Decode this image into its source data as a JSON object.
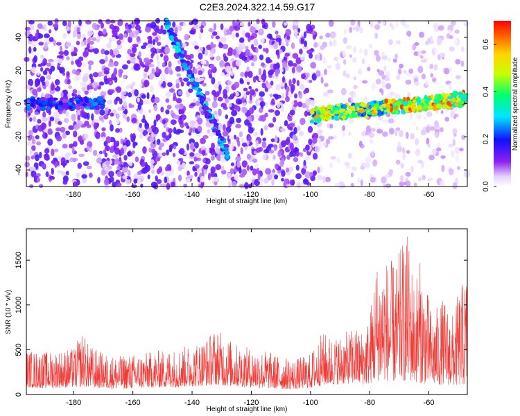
{
  "title": "C2E3.2024.322.14.59.G17",
  "chart_data": [
    {
      "type": "heatmap",
      "xlabel": "Height of straight line (km)",
      "ylabel": "Frequency (Hz)",
      "xlim": [
        -196,
        -47
      ],
      "ylim": [
        -50,
        50
      ],
      "xticks": [
        "-180",
        "-160",
        "-140",
        "-120",
        "-100",
        "-80",
        "-60"
      ],
      "xtick_values": [
        -180,
        -160,
        -140,
        -120,
        -100,
        -80,
        -60
      ],
      "yticks": [
        "-40",
        "-20",
        "0",
        "20",
        "40"
      ],
      "ytick_values": [
        -40,
        -20,
        0,
        20,
        40
      ],
      "colorbar": {
        "label": "Normalized spectral amplitude",
        "range": [
          0.0,
          0.7
        ],
        "ticks": [
          "0.0",
          "0.2",
          "0.4",
          "0.6"
        ],
        "tick_values": [
          0.0,
          0.2,
          0.4,
          0.6
        ]
      },
      "features": [
        {
          "name": "carrier band low-height",
          "x": [
            -196,
            -170
          ],
          "freq": 0,
          "amplitude": 0.2
        },
        {
          "name": "doppler streak",
          "x": [
            -149,
            -128
          ],
          "freq": [
            50,
            -30
          ],
          "amplitude": 0.25
        },
        {
          "name": "carrier band high-height",
          "x": [
            -100,
            -47
          ],
          "freq": [
            -7,
            3
          ],
          "amplitude": 0.45
        }
      ]
    },
    {
      "type": "line",
      "xlabel": "Height of straight line (km)",
      "ylabel": "SNR (10 * v/v)",
      "xlim": [
        -196,
        -47
      ],
      "ylim": [
        0,
        1850
      ],
      "xticks": [
        "-180",
        "-160",
        "-140",
        "-120",
        "-100",
        "-80",
        "-60"
      ],
      "xtick_values": [
        -180,
        -160,
        -140,
        -120,
        -100,
        -80,
        -60
      ],
      "yticks": [
        "0",
        "500",
        "1000",
        "1500"
      ],
      "ytick_values": [
        0,
        500,
        1000,
        1500
      ],
      "color": "#ef3a36",
      "envelope": {
        "x": [
          -196,
          -190,
          -180,
          -177,
          -175,
          -170,
          -165,
          -160,
          -150,
          -145,
          -140,
          -135,
          -132,
          -130,
          -125,
          -120,
          -115,
          -110,
          -105,
          -100,
          -96,
          -92,
          -88,
          -85,
          -82,
          -80,
          -78,
          -75,
          -73,
          -71,
          -69,
          -67,
          -65,
          -63,
          -61,
          -59,
          -57,
          -55,
          -52,
          -50,
          -47
        ],
        "max": [
          500,
          480,
          520,
          720,
          560,
          460,
          430,
          450,
          500,
          520,
          560,
          640,
          750,
          690,
          560,
          520,
          500,
          420,
          400,
          460,
          700,
          640,
          700,
          750,
          720,
          900,
          1500,
          1550,
          1500,
          1480,
          1700,
          1800,
          1300,
          1500,
          1250,
          900,
          1000,
          1080,
          900,
          1150,
          1380
        ],
        "min": [
          80,
          70,
          80,
          90,
          80,
          70,
          60,
          70,
          80,
          80,
          90,
          100,
          110,
          100,
          90,
          80,
          70,
          60,
          60,
          70,
          100,
          110,
          120,
          120,
          110,
          120,
          150,
          160,
          150,
          140,
          150,
          160,
          140,
          130,
          120,
          110,
          100,
          110,
          100,
          100,
          110
        ]
      }
    }
  ]
}
